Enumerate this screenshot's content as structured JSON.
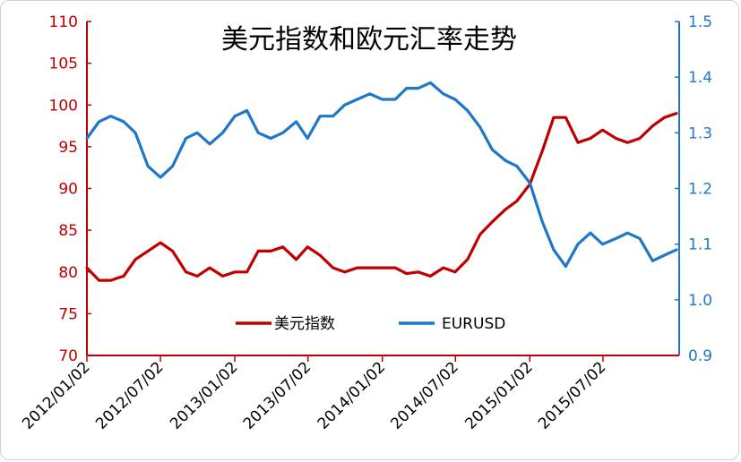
{
  "chart_data": {
    "type": "line",
    "title": "美元指数和欧元汇率走势",
    "x_tick_labels": [
      "2012/01/02",
      "2012/07/02",
      "2013/01/02",
      "2013/07/02",
      "2014/01/02",
      "2014/07/02",
      "2015/01/02",
      "2015/07/02"
    ],
    "left_axis": {
      "ylim": [
        70,
        110
      ],
      "ticks": [
        70,
        75,
        80,
        85,
        90,
        95,
        100,
        105,
        110
      ],
      "color": "#c00000"
    },
    "right_axis": {
      "ylim": [
        0.9,
        1.5
      ],
      "ticks": [
        "0.9",
        "1.0",
        "1.1",
        "1.2",
        "1.3",
        "1.4",
        "1.5"
      ],
      "color": "#1f77c8"
    },
    "legend_position": "bottom-center",
    "grid": false,
    "series": [
      {
        "name": "美元指数",
        "axis": "left",
        "color": "#c00000",
        "x": [
          "2012/01/02",
          "2012/02/01",
          "2012/03/01",
          "2012/04/02",
          "2012/05/01",
          "2012/06/01",
          "2012/07/02",
          "2012/08/01",
          "2012/09/03",
          "2012/10/01",
          "2012/11/01",
          "2012/12/03",
          "2013/01/02",
          "2013/02/01",
          "2013/03/01",
          "2013/04/01",
          "2013/05/01",
          "2013/06/03",
          "2013/07/01",
          "2013/08/01",
          "2013/09/02",
          "2013/10/01",
          "2013/11/01",
          "2013/12/02",
          "2014/01/02",
          "2014/02/03",
          "2014/03/03",
          "2014/04/01",
          "2014/05/01",
          "2014/06/02",
          "2014/07/01",
          "2014/08/01",
          "2014/09/01",
          "2014/10/01",
          "2014/11/03",
          "2014/12/01",
          "2015/01/02",
          "2015/02/02",
          "2015/03/02",
          "2015/04/01",
          "2015/05/01",
          "2015/06/01",
          "2015/07/01",
          "2015/08/03",
          "2015/09/01",
          "2015/10/01",
          "2015/11/02",
          "2015/12/01",
          "2015/12/31"
        ],
        "values": [
          80.5,
          79.0,
          79.0,
          79.5,
          81.5,
          82.5,
          83.5,
          82.5,
          80.0,
          79.5,
          80.5,
          79.5,
          80.0,
          80.0,
          82.5,
          82.5,
          83.0,
          81.5,
          83.0,
          82.0,
          80.5,
          80.0,
          80.5,
          80.5,
          80.5,
          80.5,
          79.8,
          80.0,
          79.5,
          80.5,
          80.0,
          81.5,
          84.5,
          86.0,
          87.5,
          88.5,
          90.5,
          94.5,
          98.5,
          98.5,
          95.5,
          96.0,
          97.0,
          96.0,
          95.5,
          96.0,
          97.5,
          98.5,
          99.0
        ]
      },
      {
        "name": "EURUSD",
        "axis": "right",
        "color": "#1f77c8",
        "x": [
          "2012/01/02",
          "2012/02/01",
          "2012/03/01",
          "2012/04/02",
          "2012/05/01",
          "2012/06/01",
          "2012/07/02",
          "2012/08/01",
          "2012/09/03",
          "2012/10/01",
          "2012/11/01",
          "2012/12/03",
          "2013/01/02",
          "2013/02/01",
          "2013/03/01",
          "2013/04/01",
          "2013/05/01",
          "2013/06/03",
          "2013/07/01",
          "2013/08/01",
          "2013/09/02",
          "2013/10/01",
          "2013/11/01",
          "2013/12/02",
          "2014/01/02",
          "2014/02/03",
          "2014/03/03",
          "2014/04/01",
          "2014/05/01",
          "2014/06/02",
          "2014/07/01",
          "2014/08/01",
          "2014/09/01",
          "2014/10/01",
          "2014/11/03",
          "2014/12/01",
          "2015/01/02",
          "2015/02/02",
          "2015/03/02",
          "2015/04/01",
          "2015/05/01",
          "2015/06/01",
          "2015/07/01",
          "2015/08/03",
          "2015/09/01",
          "2015/10/01",
          "2015/11/02",
          "2015/12/01",
          "2015/12/31"
        ],
        "values": [
          1.29,
          1.32,
          1.33,
          1.32,
          1.3,
          1.24,
          1.22,
          1.24,
          1.29,
          1.3,
          1.28,
          1.3,
          1.33,
          1.34,
          1.3,
          1.29,
          1.3,
          1.32,
          1.29,
          1.33,
          1.33,
          1.35,
          1.36,
          1.37,
          1.36,
          1.36,
          1.38,
          1.38,
          1.39,
          1.37,
          1.36,
          1.34,
          1.31,
          1.27,
          1.25,
          1.24,
          1.21,
          1.14,
          1.09,
          1.06,
          1.1,
          1.12,
          1.1,
          1.11,
          1.12,
          1.11,
          1.07,
          1.08,
          1.09
        ]
      }
    ]
  }
}
